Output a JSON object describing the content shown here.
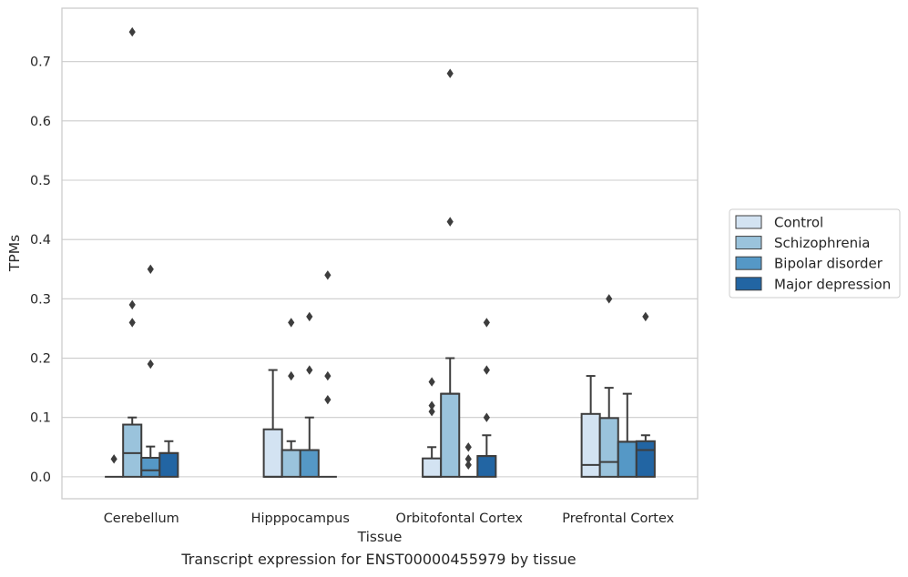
{
  "caption": "Transcript expression for ENST00000455979 by tissue",
  "chart_data": {
    "type": "box",
    "title": "",
    "xlabel": "Tissue",
    "ylabel": "TPMs",
    "categories": [
      "Cerebellum",
      "Hipppocampus",
      "Orbitofontal Cortex",
      "Prefrontal Cortex"
    ],
    "ylim": [
      -0.037,
      0.79
    ],
    "yticks": [
      0.0,
      0.1,
      0.2,
      0.3,
      0.4,
      0.5,
      0.6,
      0.7
    ],
    "ytick_labels": [
      "0.0",
      "0.1",
      "0.2",
      "0.3",
      "0.4",
      "0.5",
      "0.6",
      "0.7"
    ],
    "grid": "horizontal",
    "legend_position": "right",
    "series": [
      {
        "name": "Control",
        "color": "#d3e3f2",
        "boxes": [
          {
            "q1": 0.0,
            "median": 0.0,
            "q3": 0.0,
            "whisker_low": 0.0,
            "whisker_high": 0.0,
            "outliers": [
              0.03
            ]
          },
          {
            "q1": 0.0,
            "median": 0.0,
            "q3": 0.08,
            "whisker_low": 0.0,
            "whisker_high": 0.18,
            "outliers": []
          },
          {
            "q1": 0.0,
            "median": 0.0,
            "q3": 0.031,
            "whisker_low": 0.0,
            "whisker_high": 0.05,
            "outliers": [
              0.11,
              0.12,
              0.16
            ]
          },
          {
            "q1": 0.0,
            "median": 0.02,
            "q3": 0.106,
            "whisker_low": 0.0,
            "whisker_high": 0.17,
            "outliers": []
          }
        ]
      },
      {
        "name": "Schizophrenia",
        "color": "#9ac3dc",
        "boxes": [
          {
            "q1": 0.0,
            "median": 0.04,
            "q3": 0.088,
            "whisker_low": 0.0,
            "whisker_high": 0.1,
            "outliers": [
              0.26,
              0.29,
              0.75
            ]
          },
          {
            "q1": 0.0,
            "median": 0.045,
            "q3": 0.045,
            "whisker_low": 0.0,
            "whisker_high": 0.06,
            "outliers": [
              0.17,
              0.26
            ]
          },
          {
            "q1": 0.0,
            "median": 0.14,
            "q3": 0.14,
            "whisker_low": 0.0,
            "whisker_high": 0.2,
            "outliers": [
              0.43,
              0.68
            ]
          },
          {
            "q1": 0.0,
            "median": 0.025,
            "q3": 0.099,
            "whisker_low": 0.0,
            "whisker_high": 0.15,
            "outliers": [
              0.3
            ]
          }
        ]
      },
      {
        "name": "Bipolar disorder",
        "color": "#5598c6",
        "boxes": [
          {
            "q1": 0.0,
            "median": 0.011,
            "q3": 0.032,
            "whisker_low": 0.0,
            "whisker_high": 0.051,
            "outliers": [
              0.19,
              0.35
            ]
          },
          {
            "q1": 0.0,
            "median": 0.045,
            "q3": 0.045,
            "whisker_low": 0.0,
            "whisker_high": 0.1,
            "outliers": [
              0.18,
              0.27
            ]
          },
          {
            "q1": 0.0,
            "median": 0.0,
            "q3": 0.0,
            "whisker_low": 0.0,
            "whisker_high": 0.0,
            "outliers": [
              0.02,
              0.03,
              0.05
            ]
          },
          {
            "q1": 0.0,
            "median": 0.059,
            "q3": 0.059,
            "whisker_low": 0.0,
            "whisker_high": 0.14,
            "outliers": []
          }
        ]
      },
      {
        "name": "Major depression",
        "color": "#2265a3",
        "boxes": [
          {
            "q1": 0.0,
            "median": 0.04,
            "q3": 0.04,
            "whisker_low": 0.0,
            "whisker_high": 0.06,
            "outliers": []
          },
          {
            "q1": 0.0,
            "median": 0.0,
            "q3": 0.0,
            "whisker_low": 0.0,
            "whisker_high": 0.0,
            "outliers": [
              0.13,
              0.17,
              0.34
            ]
          },
          {
            "q1": 0.0,
            "median": 0.035,
            "q3": 0.035,
            "whisker_low": 0.0,
            "whisker_high": 0.07,
            "outliers": [
              0.1,
              0.18,
              0.26
            ]
          },
          {
            "q1": 0.0,
            "median": 0.045,
            "q3": 0.06,
            "whisker_low": 0.0,
            "whisker_high": 0.07,
            "outliers": [
              0.27
            ]
          }
        ]
      }
    ],
    "colors": {
      "edge": "#3d3d3d",
      "grid": "#cccccc",
      "spine": "#cccccc",
      "outlier": "#3d3d3d"
    }
  }
}
